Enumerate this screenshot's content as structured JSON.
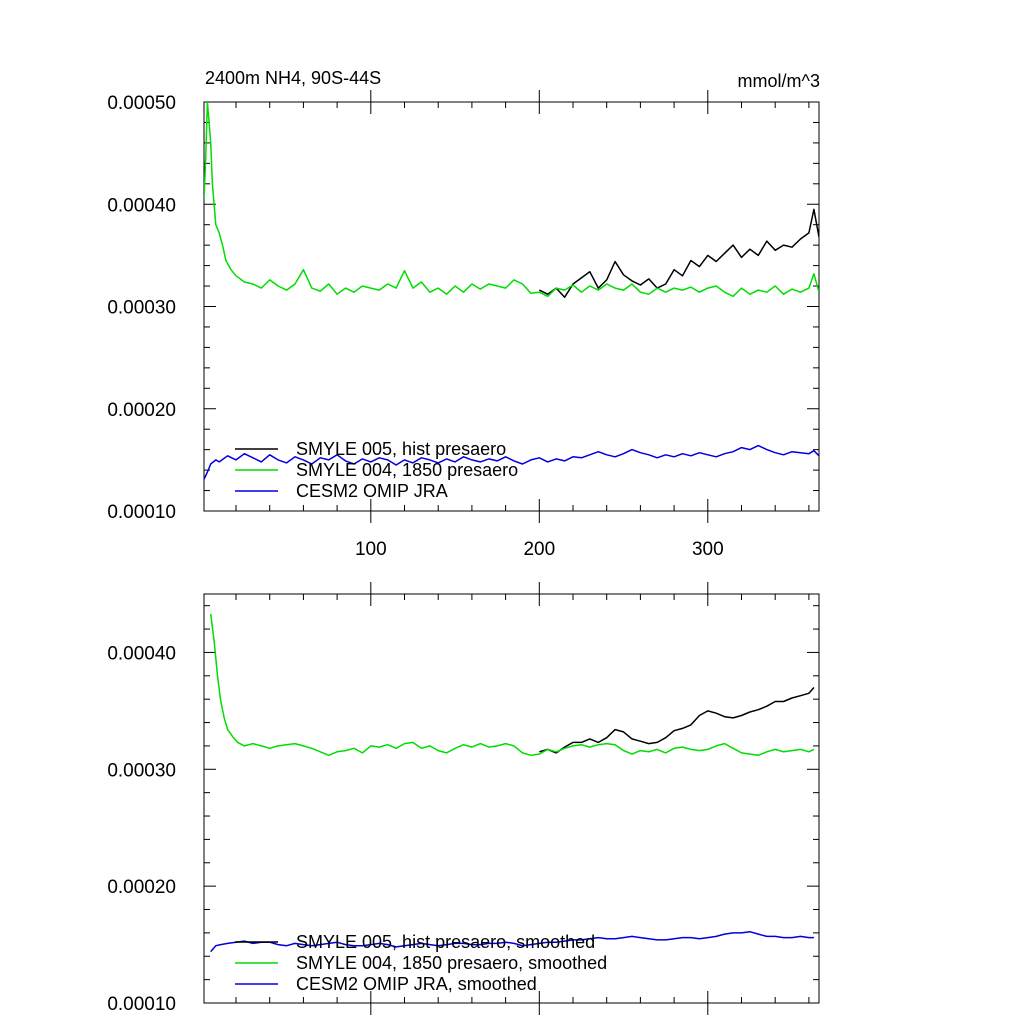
{
  "chart_data": [
    {
      "type": "line",
      "title": "2400m NH4, 90S-44S",
      "units": "mmol/m^3",
      "xlabel": "",
      "ylabel": "",
      "xlim": [
        1,
        366
      ],
      "ylim": [
        0.0001,
        0.0005
      ],
      "yticks": [
        {
          "v": 0.0005,
          "label": "0.00050"
        },
        {
          "v": 0.0004,
          "label": "0.00040"
        },
        {
          "v": 0.0003,
          "label": "0.00030"
        },
        {
          "v": 0.0002,
          "label": "0.00020"
        },
        {
          "v": 0.0001,
          "label": "0.00010"
        }
      ],
      "xticks": [
        {
          "v": 100,
          "label": "100"
        },
        {
          "v": 200,
          "label": "200"
        },
        {
          "v": 300,
          "label": "300"
        }
      ],
      "legend": "lower-left",
      "series": [
        {
          "name": "SMYLE 005, hist presaero",
          "color": "#000000",
          "x": [
            200,
            205,
            210,
            215,
            220,
            225,
            230,
            235,
            240,
            245,
            250,
            255,
            260,
            265,
            270,
            275,
            280,
            285,
            290,
            295,
            300,
            305,
            310,
            315,
            320,
            325,
            330,
            335,
            340,
            345,
            350,
            355,
            360,
            363,
            366
          ],
          "y": [
            0.000316,
            0.000312,
            0.000318,
            0.000309,
            0.000322,
            0.000328,
            0.000334,
            0.000318,
            0.000326,
            0.000344,
            0.000331,
            0.000325,
            0.000321,
            0.000327,
            0.000318,
            0.000322,
            0.000336,
            0.00033,
            0.000345,
            0.000339,
            0.00035,
            0.000344,
            0.000352,
            0.00036,
            0.000348,
            0.000356,
            0.00035,
            0.000364,
            0.000355,
            0.00036,
            0.000358,
            0.000366,
            0.000372,
            0.000395,
            0.000368
          ]
        },
        {
          "name": "SMYLE 004, 1850 presaero",
          "color": "#00dd00",
          "x": [
            1,
            2,
            3,
            4,
            5,
            6,
            7,
            8,
            10,
            12,
            14,
            17,
            20,
            25,
            30,
            35,
            40,
            45,
            50,
            55,
            60,
            65,
            70,
            75,
            80,
            85,
            90,
            95,
            100,
            105,
            110,
            115,
            120,
            125,
            130,
            135,
            140,
            145,
            150,
            155,
            160,
            165,
            170,
            175,
            180,
            185,
            190,
            195,
            200,
            205,
            210,
            215,
            220,
            225,
            230,
            235,
            240,
            245,
            250,
            255,
            260,
            265,
            270,
            275,
            280,
            285,
            290,
            295,
            300,
            305,
            310,
            315,
            320,
            325,
            330,
            335,
            340,
            345,
            350,
            355,
            360,
            363,
            366
          ],
          "y": [
            0.000405,
            0.000445,
            0.0005,
            0.00048,
            0.00046,
            0.00042,
            0.0004,
            0.00038,
            0.000372,
            0.00036,
            0.000345,
            0.000336,
            0.00033,
            0.000324,
            0.000322,
            0.000318,
            0.000326,
            0.00032,
            0.000316,
            0.000322,
            0.000336,
            0.000318,
            0.000315,
            0.000322,
            0.000312,
            0.000318,
            0.000314,
            0.00032,
            0.000318,
            0.000316,
            0.000322,
            0.000318,
            0.000335,
            0.000318,
            0.000324,
            0.000314,
            0.000318,
            0.000312,
            0.00032,
            0.000314,
            0.000322,
            0.000317,
            0.000322,
            0.00032,
            0.000318,
            0.000326,
            0.000322,
            0.000313,
            0.000314,
            0.00031,
            0.000318,
            0.000316,
            0.000321,
            0.000314,
            0.00032,
            0.000316,
            0.000322,
            0.000318,
            0.000316,
            0.000322,
            0.000314,
            0.000312,
            0.000318,
            0.000314,
            0.000318,
            0.000316,
            0.000319,
            0.000314,
            0.000318,
            0.00032,
            0.000314,
            0.00031,
            0.000318,
            0.000312,
            0.000316,
            0.000314,
            0.00032,
            0.000312,
            0.000317,
            0.000314,
            0.000318,
            0.000332,
            0.000314
          ]
        },
        {
          "name": "CESM2 OMIP JRA",
          "color": "#0000dd",
          "x": [
            1,
            3,
            5,
            8,
            10,
            15,
            20,
            25,
            30,
            35,
            40,
            45,
            50,
            55,
            60,
            65,
            70,
            75,
            80,
            85,
            90,
            95,
            100,
            105,
            110,
            115,
            120,
            125,
            130,
            135,
            140,
            145,
            150,
            155,
            160,
            165,
            170,
            175,
            180,
            185,
            190,
            195,
            200,
            205,
            210,
            215,
            220,
            225,
            230,
            235,
            240,
            245,
            250,
            255,
            260,
            265,
            270,
            275,
            280,
            285,
            290,
            295,
            300,
            305,
            310,
            315,
            320,
            325,
            330,
            335,
            340,
            345,
            350,
            355,
            360,
            363,
            366
          ],
          "y": [
            0.000131,
            0.000138,
            0.000146,
            0.00015,
            0.000148,
            0.000154,
            0.00015,
            0.000156,
            0.000152,
            0.000148,
            0.000155,
            0.00015,
            0.000147,
            0.000153,
            0.00015,
            0.000146,
            0.000152,
            0.00015,
            0.000155,
            0.000149,
            0.000146,
            0.000151,
            0.000148,
            0.000152,
            0.00015,
            0.000145,
            0.00015,
            0.000147,
            0.000152,
            0.00015,
            0.000147,
            0.000151,
            0.000148,
            0.000153,
            0.00015,
            0.000148,
            0.000151,
            0.000149,
            0.000153,
            0.000149,
            0.000146,
            0.00015,
            0.000152,
            0.000148,
            0.000151,
            0.000149,
            0.000153,
            0.000152,
            0.000155,
            0.000158,
            0.000155,
            0.000153,
            0.000156,
            0.00016,
            0.000157,
            0.000155,
            0.000152,
            0.000155,
            0.000153,
            0.000156,
            0.000154,
            0.000157,
            0.000155,
            0.000153,
            0.000156,
            0.000158,
            0.000162,
            0.00016,
            0.000164,
            0.00016,
            0.000157,
            0.000155,
            0.000158,
            0.000157,
            0.000156,
            0.000159,
            0.000154
          ]
        }
      ]
    },
    {
      "type": "line",
      "title": "",
      "xlabel": "",
      "ylabel": "",
      "xlim": [
        1,
        366
      ],
      "ylim": [
        0.0001,
        0.00045
      ],
      "yticks": [
        {
          "v": 0.0004,
          "label": "0.00040"
        },
        {
          "v": 0.0003,
          "label": "0.00030"
        },
        {
          "v": 0.0002,
          "label": "0.00020"
        },
        {
          "v": 0.0001,
          "label": "0.00010"
        }
      ],
      "xticks": [],
      "legend": "lower-left",
      "series": [
        {
          "name": "SMYLE 005, hist presaero, smoothed",
          "color": "#000000",
          "x": [
            200,
            205,
            210,
            215,
            220,
            225,
            230,
            235,
            240,
            245,
            250,
            255,
            260,
            265,
            270,
            275,
            280,
            285,
            290,
            295,
            300,
            305,
            310,
            315,
            320,
            325,
            330,
            335,
            340,
            345,
            350,
            355,
            360,
            363
          ],
          "y": [
            0.000315,
            0.000317,
            0.000314,
            0.000319,
            0.000323,
            0.000323,
            0.000326,
            0.000323,
            0.000327,
            0.000334,
            0.000332,
            0.000326,
            0.000324,
            0.000322,
            0.000323,
            0.000327,
            0.000333,
            0.000335,
            0.000338,
            0.000346,
            0.00035,
            0.000348,
            0.000345,
            0.000344,
            0.000346,
            0.000349,
            0.000351,
            0.000354,
            0.000358,
            0.000358,
            0.000361,
            0.000363,
            0.000365,
            0.00037
          ]
        },
        {
          "name": "SMYLE 004, 1850 presaero, smoothed",
          "color": "#00dd00",
          "x": [
            5,
            7,
            9,
            11,
            13,
            15,
            18,
            21,
            25,
            30,
            35,
            40,
            45,
            50,
            55,
            60,
            65,
            70,
            75,
            80,
            85,
            90,
            95,
            100,
            105,
            110,
            115,
            120,
            125,
            130,
            135,
            140,
            145,
            150,
            155,
            160,
            165,
            170,
            175,
            180,
            185,
            190,
            195,
            200,
            205,
            210,
            215,
            220,
            225,
            230,
            235,
            240,
            245,
            250,
            255,
            260,
            265,
            270,
            275,
            280,
            285,
            290,
            295,
            300,
            305,
            310,
            315,
            320,
            325,
            330,
            335,
            340,
            345,
            350,
            355,
            360,
            363
          ],
          "y": [
            0.000433,
            0.00041,
            0.00038,
            0.000358,
            0.000344,
            0.000334,
            0.000328,
            0.000323,
            0.00032,
            0.000322,
            0.00032,
            0.000318,
            0.00032,
            0.000321,
            0.000322,
            0.00032,
            0.000318,
            0.000315,
            0.000312,
            0.000315,
            0.000316,
            0.000318,
            0.000314,
            0.00032,
            0.000319,
            0.000321,
            0.000318,
            0.000322,
            0.000323,
            0.000318,
            0.00032,
            0.000316,
            0.000314,
            0.000318,
            0.000321,
            0.000319,
            0.000322,
            0.000319,
            0.00032,
            0.000322,
            0.00032,
            0.000314,
            0.000312,
            0.000313,
            0.000317,
            0.000315,
            0.000318,
            0.00032,
            0.000321,
            0.000319,
            0.000321,
            0.000322,
            0.000321,
            0.000316,
            0.000313,
            0.000316,
            0.000315,
            0.000317,
            0.000314,
            0.000318,
            0.000319,
            0.000317,
            0.000316,
            0.000317,
            0.00032,
            0.000322,
            0.000318,
            0.000314,
            0.000313,
            0.000312,
            0.000315,
            0.000317,
            0.000315,
            0.000316,
            0.000317,
            0.000315,
            0.000317
          ]
        },
        {
          "name": "CESM2 OMIP JRA, smoothed",
          "color": "#0000dd",
          "x": [
            5,
            8,
            11,
            15,
            20,
            25,
            30,
            35,
            40,
            45,
            50,
            55,
            60,
            65,
            70,
            75,
            80,
            85,
            90,
            95,
            100,
            105,
            110,
            115,
            120,
            125,
            130,
            135,
            140,
            145,
            150,
            155,
            160,
            165,
            170,
            175,
            180,
            185,
            190,
            195,
            200,
            205,
            210,
            215,
            220,
            225,
            230,
            235,
            240,
            245,
            250,
            255,
            260,
            265,
            270,
            275,
            280,
            285,
            290,
            295,
            300,
            305,
            310,
            315,
            320,
            325,
            330,
            335,
            340,
            345,
            350,
            355,
            360,
            363
          ],
          "y": [
            0.000144,
            0.000149,
            0.00015,
            0.000151,
            0.000152,
            0.000153,
            0.000151,
            0.000152,
            0.000152,
            0.00015,
            0.000149,
            0.000151,
            0.00015,
            0.000149,
            0.00015,
            0.000151,
            0.000152,
            0.00015,
            0.000149,
            0.000149,
            0.00015,
            0.000151,
            0.00015,
            0.000148,
            0.000149,
            0.00015,
            0.000151,
            0.00015,
            0.000149,
            0.00015,
            0.000151,
            0.000151,
            0.00015,
            0.00015,
            0.000151,
            0.000151,
            0.000152,
            0.000151,
            0.000149,
            0.00015,
            0.000151,
            0.000152,
            0.000152,
            0.000153,
            0.000154,
            0.000154,
            0.000155,
            0.000156,
            0.000155,
            0.000155,
            0.000156,
            0.000157,
            0.000156,
            0.000155,
            0.000154,
            0.000154,
            0.000155,
            0.000156,
            0.000156,
            0.000155,
            0.000156,
            0.000157,
            0.000159,
            0.00016,
            0.00016,
            0.000161,
            0.000159,
            0.000157,
            0.000157,
            0.000156,
            0.000156,
            0.000157,
            0.000156,
            0.000156
          ]
        }
      ]
    }
  ]
}
